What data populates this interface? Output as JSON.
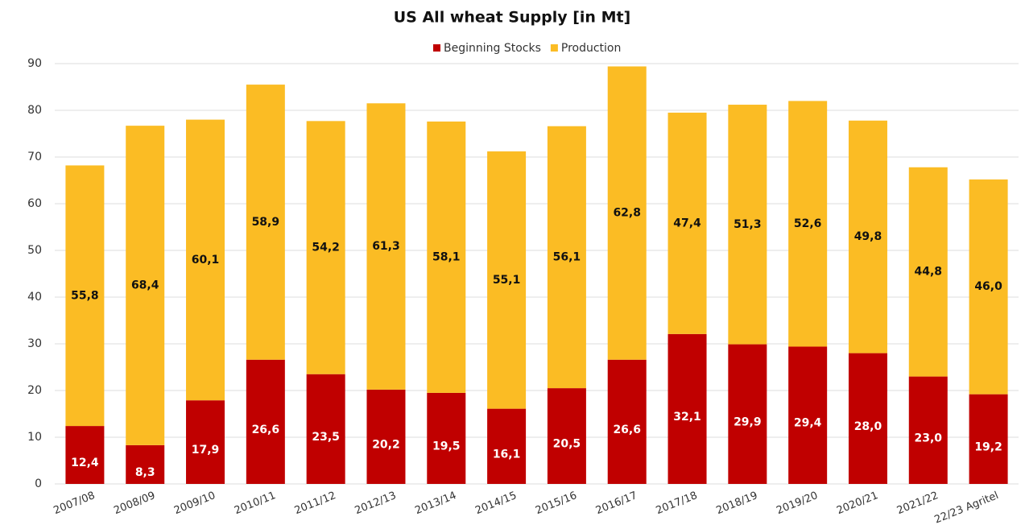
{
  "chart_data": {
    "type": "stacked_bar",
    "title": "US All wheat Supply [in Mt]",
    "categories": [
      "2007/08",
      "2008/09",
      "2009/10",
      "2010/11",
      "2011/12",
      "2012/13",
      "2013/14",
      "2014/15",
      "2015/16",
      "2016/17",
      "2017/18",
      "2018/19",
      "2019/20",
      "2020/21",
      "2021/22",
      "22/23 Agritel"
    ],
    "series": [
      {
        "name": "Beginning Stocks",
        "color": "#c00000",
        "values": [
          12.4,
          8.3,
          17.9,
          26.6,
          23.5,
          20.2,
          19.5,
          16.1,
          20.5,
          26.6,
          32.1,
          29.9,
          29.4,
          28.0,
          23.0,
          19.2
        ],
        "value_labels": [
          "12,4",
          "8,3",
          "17,9",
          "26,6",
          "23,5",
          "20,2",
          "19,5",
          "16,1",
          "20,5",
          "26,6",
          "32,1",
          "29,9",
          "29,4",
          "28,0",
          "23,0",
          "19,2"
        ]
      },
      {
        "name": "Production",
        "color": "#fbbc24",
        "values": [
          55.8,
          68.4,
          60.1,
          58.9,
          54.2,
          61.3,
          58.1,
          55.1,
          56.1,
          62.8,
          47.4,
          51.3,
          52.6,
          49.8,
          44.8,
          46.0
        ],
        "value_labels": [
          "55,8",
          "68,4",
          "60,1",
          "58,9",
          "54,2",
          "61,3",
          "58,1",
          "55,1",
          "56,1",
          "62,8",
          "47,4",
          "51,3",
          "52,6",
          "49,8",
          "44,8",
          "46,0"
        ]
      }
    ],
    "ylim": [
      0,
      90
    ],
    "yticks": [
      0,
      10,
      20,
      30,
      40,
      50,
      60,
      70,
      80,
      90
    ],
    "grid": true,
    "legend": "top"
  }
}
